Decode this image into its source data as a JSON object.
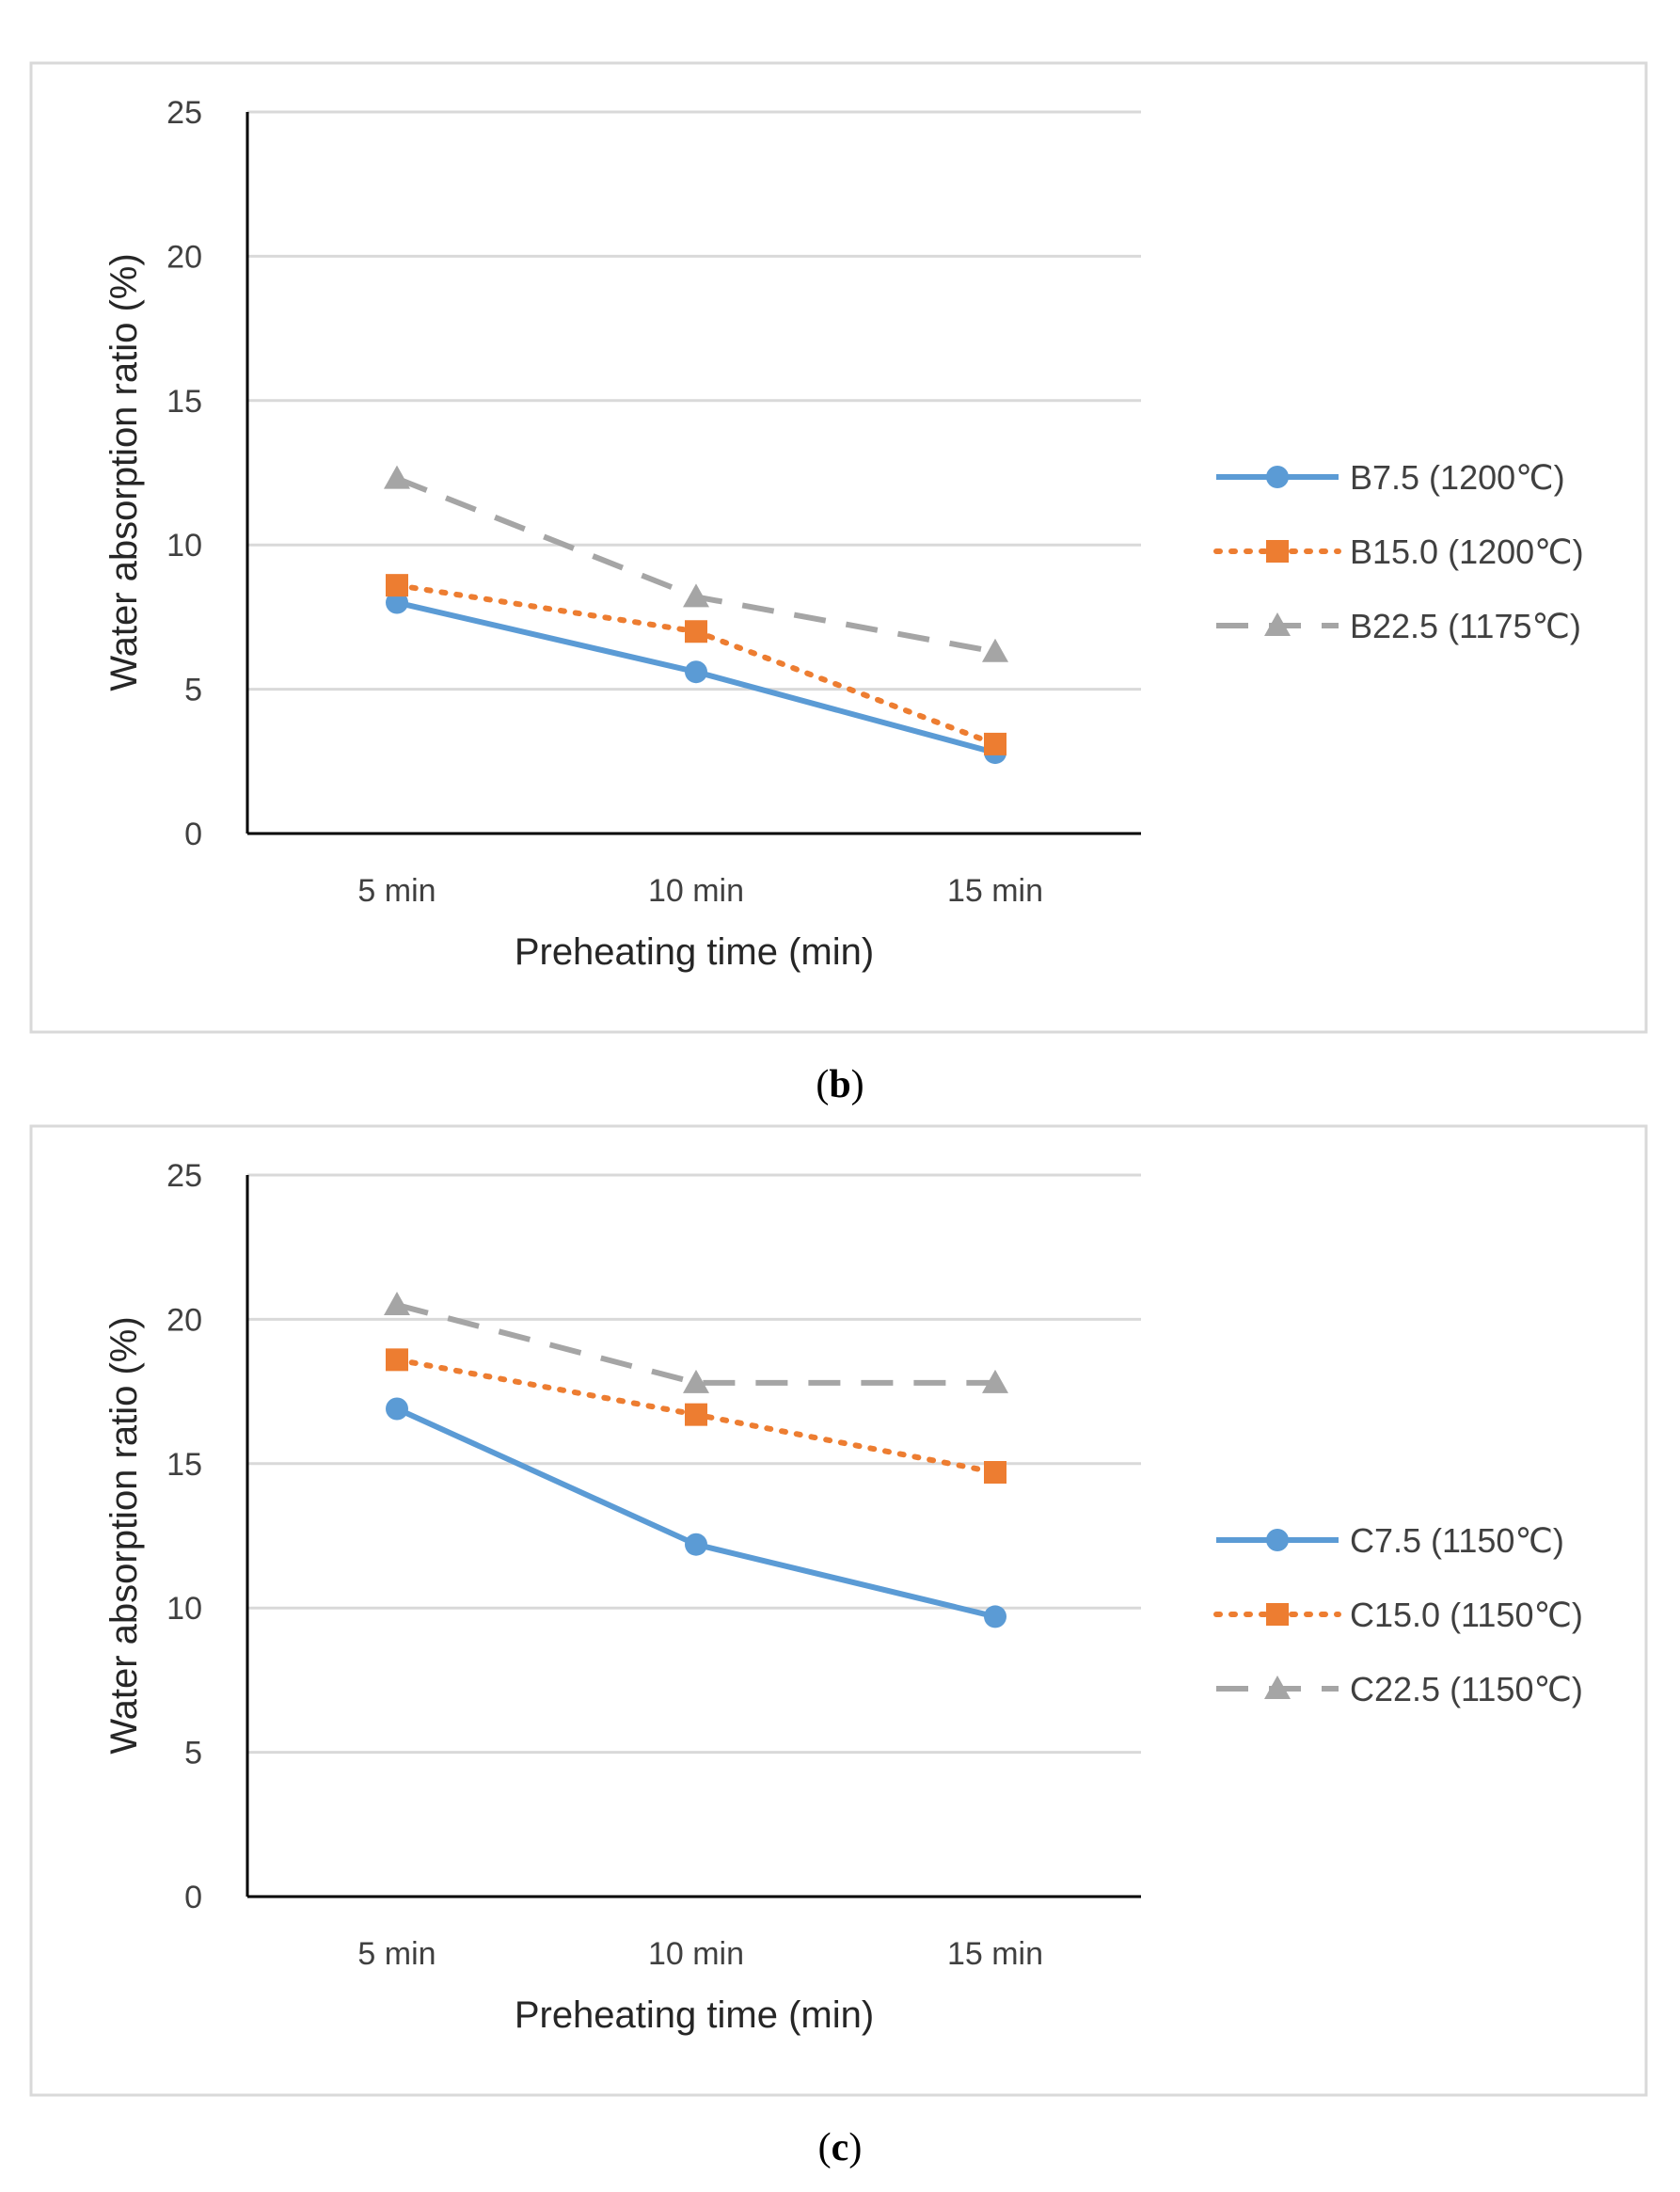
{
  "colors": {
    "blue": "#5b9bd5",
    "orange": "#ed7d31",
    "gray": "#a5a5a5",
    "grid": "#d9d9d9",
    "axis": "#000000",
    "frame": "#d9d9d9"
  },
  "chart_data": [
    {
      "type": "line",
      "panel": "b",
      "caption": {
        "open": "(",
        "letter": "b",
        "close": ")"
      },
      "categories": [
        "5 min",
        "10 min",
        "15 min"
      ],
      "xlabel": "Preheating time (min)",
      "ylabel": "Water absorption ratio  (%)",
      "ylim": [
        0,
        25
      ],
      "yticks": [
        0,
        5,
        10,
        15,
        20,
        25
      ],
      "grid": true,
      "legend": "right",
      "series": [
        {
          "name": "B7.5 (1200℃)",
          "color": "blue",
          "marker": "circle",
          "dash": "solid",
          "values": [
            8.0,
            5.6,
            2.8
          ]
        },
        {
          "name": "B15.0 (1200℃)",
          "color": "orange",
          "marker": "square",
          "dash": "dot",
          "values": [
            8.6,
            7.0,
            3.1
          ]
        },
        {
          "name": "B22.5 (1175℃)",
          "color": "gray",
          "marker": "triangle",
          "dash": "dash",
          "values": [
            12.3,
            8.2,
            6.3
          ]
        }
      ]
    },
    {
      "type": "line",
      "panel": "c",
      "caption": {
        "open": "(",
        "letter": "c",
        "close": ")"
      },
      "categories": [
        "5 min",
        "10 min",
        "15 min"
      ],
      "xlabel": "Preheating time  (min)",
      "ylabel": "Water absorption ratio  (%)",
      "ylim": [
        0,
        25
      ],
      "yticks": [
        0,
        5,
        10,
        15,
        20,
        25
      ],
      "grid": true,
      "legend": "right",
      "series": [
        {
          "name": "C7.5 (1150℃)",
          "color": "blue",
          "marker": "circle",
          "dash": "solid",
          "values": [
            16.9,
            12.2,
            9.7
          ]
        },
        {
          "name": "C15.0 (1150℃)",
          "color": "orange",
          "marker": "square",
          "dash": "dot",
          "values": [
            18.6,
            16.7,
            14.7
          ]
        },
        {
          "name": "C22.5 (1150℃)",
          "color": "gray",
          "marker": "triangle",
          "dash": "dash",
          "values": [
            20.5,
            17.8,
            17.8
          ]
        }
      ]
    }
  ]
}
